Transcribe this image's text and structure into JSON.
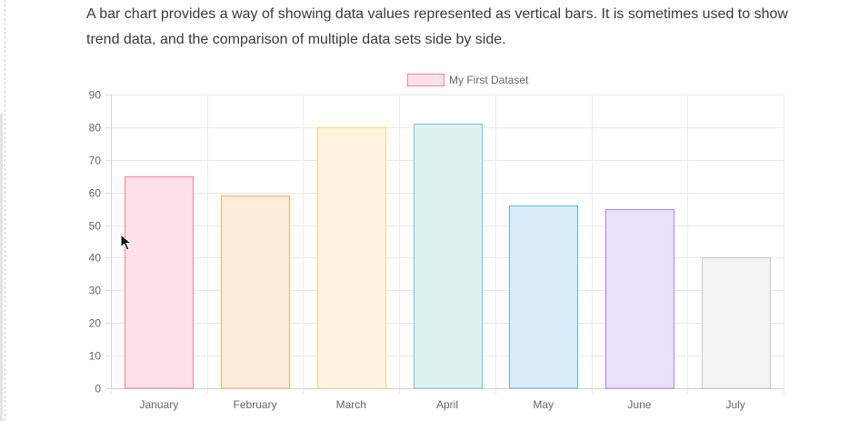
{
  "intro_text": "A bar chart provides a way of showing data values represented as vertical bars. It is sometimes used to show trend data, and the comparison of multiple data sets side by side.",
  "chart_data": {
    "type": "bar",
    "categories": [
      "January",
      "February",
      "March",
      "April",
      "May",
      "June",
      "July"
    ],
    "series": [
      {
        "name": "My First Dataset",
        "values": [
          65,
          59,
          80,
          81,
          56,
          55,
          40
        ],
        "legend_fill": "#ffe1e7",
        "legend_stroke": "#ff7f9c"
      }
    ],
    "bar_fills": [
      "#ffe1e7",
      "#ffecd9",
      "#fff5df",
      "#dff2f2",
      "#dbecfb",
      "#ebe1fe",
      "#f3f3f4"
    ],
    "bar_strokes": [
      "#ff7f9c",
      "#ffae60",
      "#ffd56e",
      "#73c9c9",
      "#60b2ec",
      "#a784ff",
      "#c9cbcf"
    ],
    "yticks": [
      0,
      10,
      20,
      30,
      40,
      50,
      60,
      70,
      80,
      90
    ],
    "ylim": [
      0,
      90
    ],
    "legend_position": "top",
    "grid": true
  }
}
